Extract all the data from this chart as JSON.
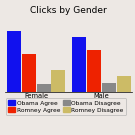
{
  "title": "Clicks by Gender",
  "groups": [
    "Female",
    "Male"
  ],
  "categories": [
    "Obama Agree",
    "Romney Agree",
    "Obama Disagree",
    "Romney Disagree"
  ],
  "colors": [
    "#1111ee",
    "#ee2200",
    "#888888",
    "#ccbb66"
  ],
  "values": {
    "Female": [
      0.85,
      0.52,
      0.11,
      0.3
    ],
    "Male": [
      0.76,
      0.58,
      0.12,
      0.22
    ]
  },
  "background_color": "#ede8e4",
  "title_fontsize": 6.5,
  "label_fontsize": 4.8,
  "legend_fontsize": 4.2,
  "bar_width": 0.12,
  "group_centers": [
    0.25,
    0.78
  ]
}
